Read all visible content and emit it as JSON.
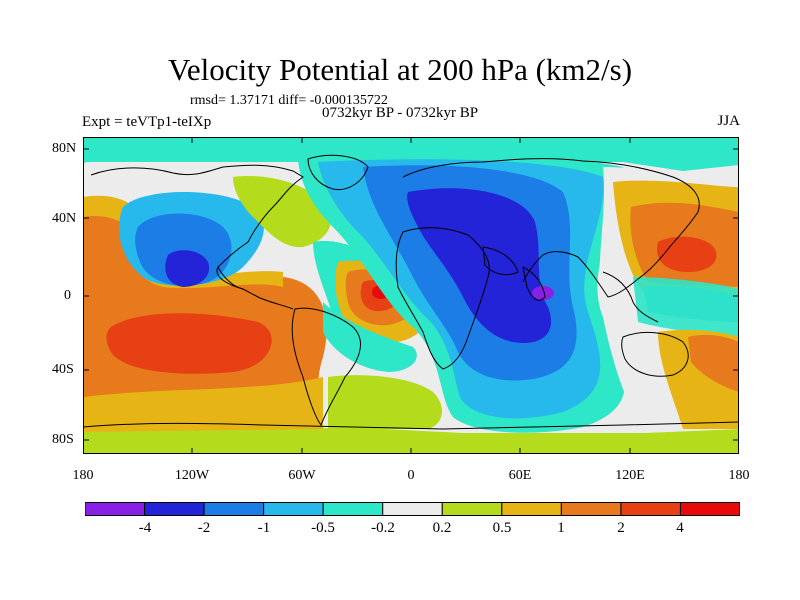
{
  "figure": {
    "title": "Velocity Potential at 200 hPa (km2/s)",
    "stats": "rmsd= 1.37171  diff= -0.000135722",
    "period": "0732kyr BP - 0732kyr BP",
    "experiment": "Expt = teVTp1-teIXp",
    "season": "JJA"
  },
  "map": {
    "y_ticks": [
      "80N",
      "40N",
      "0",
      "40S",
      "80S"
    ],
    "x_ticks": [
      "180",
      "120W",
      "60W",
      "0",
      "60E",
      "120E",
      "180"
    ]
  },
  "colorbar": {
    "colors": [
      "#8a1fe6",
      "#2323d8",
      "#1c7de6",
      "#28b9ec",
      "#2ee6c8",
      "#ececec",
      "#b4dc1c",
      "#e6b414",
      "#e67a1c",
      "#e64014",
      "#e60a0a"
    ],
    "labels": [
      "-4",
      "-2",
      "-1",
      "-0.5",
      "-0.2",
      "0.2",
      "0.5",
      "1",
      "2",
      "4"
    ]
  }
}
